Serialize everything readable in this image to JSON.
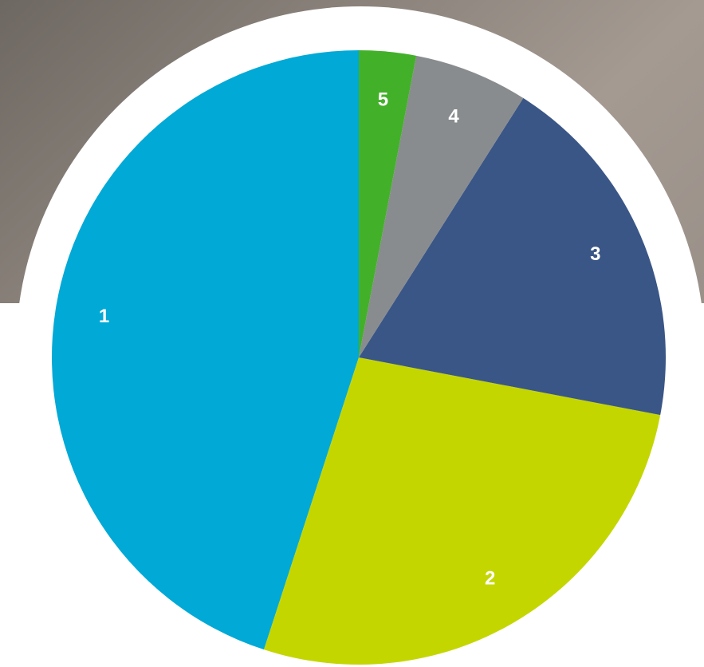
{
  "chart_data": {
    "type": "pie",
    "categories": [
      "1",
      "2",
      "3",
      "4",
      "5"
    ],
    "values": [
      45,
      27,
      19,
      6,
      3
    ],
    "colors": [
      "#00a9d6",
      "#c4d600",
      "#3a5686",
      "#898c8e",
      "#43b02a"
    ]
  }
}
